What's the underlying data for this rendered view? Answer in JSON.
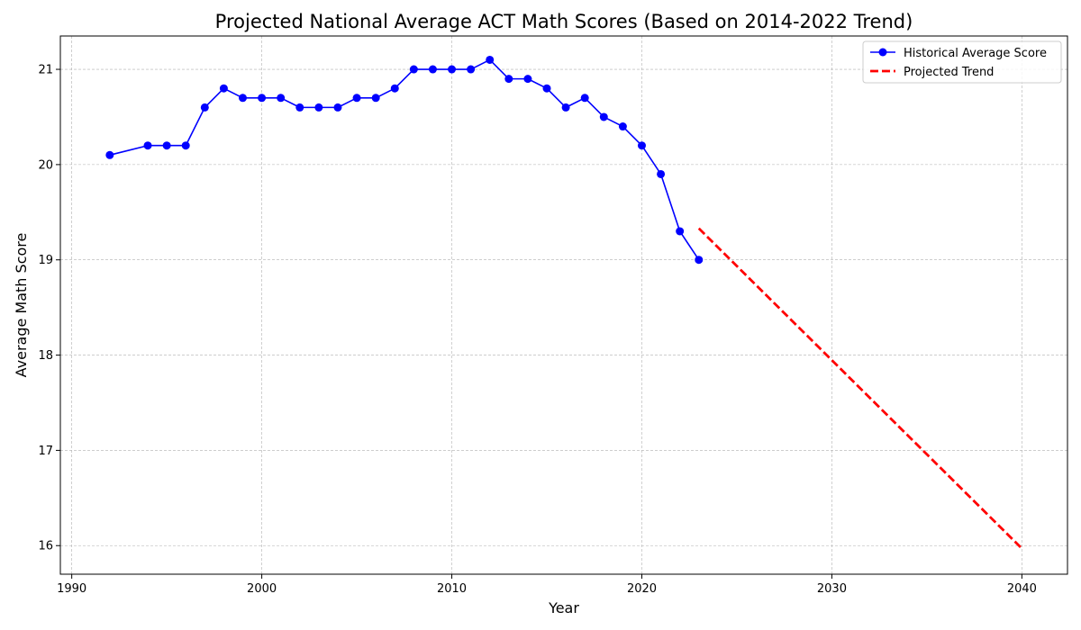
{
  "chart_data": {
    "type": "line",
    "title": "Projected National Average ACT Math Scores (Based on 2014-2022 Trend)",
    "xlabel": "Year",
    "ylabel": "Average Math Score",
    "xlim": [
      1989.4,
      2042.4
    ],
    "ylim": [
      15.7,
      21.35
    ],
    "xticks": [
      1990,
      2000,
      2010,
      2020,
      2030,
      2040
    ],
    "yticks": [
      16,
      17,
      18,
      19,
      20,
      21
    ],
    "grid": true,
    "legend_position": "top-right",
    "series": [
      {
        "name": "Historical Average Score",
        "style": "solid-line-with-markers",
        "color": "#0000ff",
        "x": [
          1992,
          1994,
          1995,
          1996,
          1997,
          1998,
          1999,
          2000,
          2001,
          2002,
          2003,
          2004,
          2005,
          2006,
          2007,
          2008,
          2009,
          2010,
          2011,
          2012,
          2013,
          2014,
          2015,
          2016,
          2017,
          2018,
          2019,
          2020,
          2021,
          2022,
          2023
        ],
        "values": [
          20.1,
          20.2,
          20.2,
          20.2,
          20.6,
          20.8,
          20.7,
          20.7,
          20.7,
          20.6,
          20.6,
          20.6,
          20.7,
          20.7,
          20.8,
          21.0,
          21.0,
          21.0,
          21.0,
          21.1,
          20.9,
          20.9,
          20.8,
          20.6,
          20.7,
          20.5,
          20.4,
          20.2,
          19.9,
          19.3,
          19.0
        ]
      },
      {
        "name": "Projected Trend",
        "style": "dashed-line",
        "color": "#ff0000",
        "x": [
          2023,
          2040
        ],
        "values": [
          19.33,
          15.97
        ]
      }
    ]
  }
}
